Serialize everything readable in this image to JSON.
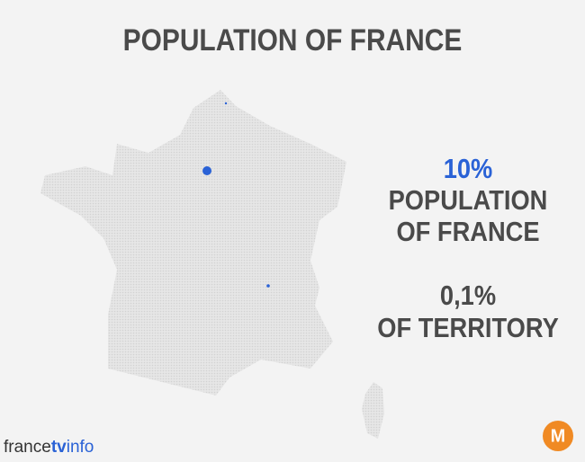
{
  "title": "POPULATION OF FRANCE",
  "stats": [
    {
      "value": "10%",
      "lines": [
        "POPULATION",
        "OF FRANCE"
      ]
    },
    {
      "value": "0,1%",
      "lines": [
        "OF TERRITORY"
      ]
    }
  ],
  "footer": {
    "logo": [
      "france",
      "tv",
      "info"
    ],
    "badge": "M"
  }
}
